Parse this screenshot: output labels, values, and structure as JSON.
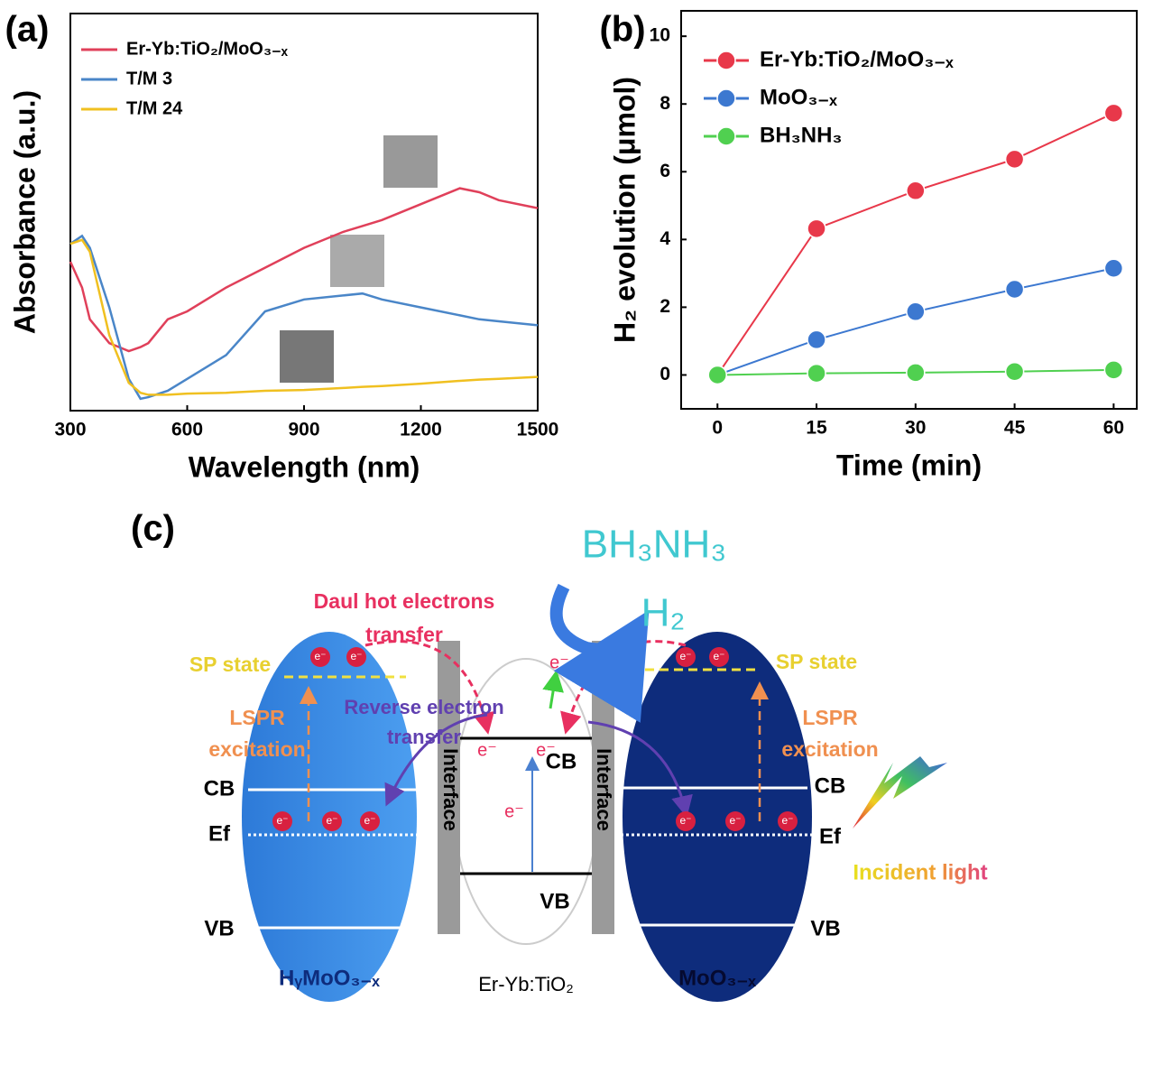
{
  "chart_data": [
    {
      "type": "line",
      "label": "(a)",
      "xlabel": "Wavelength (nm)",
      "ylabel": "Absorbance (a.u.)",
      "xlim": [
        300,
        1500
      ],
      "xticks": [
        300,
        600,
        900,
        1200,
        1500
      ],
      "ylim": [
        0,
        1
      ],
      "legend": "upper left",
      "x": [
        300,
        330,
        350,
        400,
        450,
        480,
        500,
        550,
        600,
        700,
        800,
        900,
        1000,
        1050,
        1100,
        1200,
        1300,
        1350,
        1400,
        1500
      ],
      "series": [
        {
          "name": "Er-Yb:TiO₂/MoO₃₋ₓ",
          "color": "#e0405a",
          "values": [
            0.375,
            0.31,
            0.23,
            0.17,
            0.15,
            0.16,
            0.17,
            0.23,
            0.25,
            0.31,
            0.36,
            0.41,
            0.45,
            0.465,
            0.48,
            0.52,
            0.56,
            0.55,
            0.53,
            0.51
          ]
        },
        {
          "name": "T/M 3",
          "color": "#4a86c8",
          "values": [
            0.42,
            0.44,
            0.41,
            0.26,
            0.08,
            0.03,
            0.034,
            0.05,
            0.08,
            0.14,
            0.25,
            0.28,
            0.29,
            0.295,
            0.28,
            0.26,
            0.24,
            0.23,
            0.225,
            0.215
          ]
        },
        {
          "name": "T/M 24",
          "color": "#f0c020",
          "values": [
            0.42,
            0.43,
            0.4,
            0.19,
            0.07,
            0.045,
            0.04,
            0.04,
            0.043,
            0.045,
            0.05,
            0.052,
            0.057,
            0.06,
            0.062,
            0.068,
            0.075,
            0.078,
            0.08,
            0.085
          ]
        }
      ]
    },
    {
      "type": "line",
      "label": "(b)",
      "xlabel": "Time (min)",
      "ylabel": "H₂ evolution (μmol)",
      "xlim": [
        -5.5,
        63.5
      ],
      "xticks": [
        0,
        15,
        30,
        45,
        60
      ],
      "ylim": [
        -1,
        10.75
      ],
      "yticks": [
        0,
        2,
        4,
        6,
        8,
        10
      ],
      "legend": "upper left",
      "markers": true,
      "x": [
        0,
        15,
        30,
        45,
        60
      ],
      "series": [
        {
          "name": "Er-Yb:TiO₂/MoO₃₋ₓ",
          "color": "#e8384a",
          "values": [
            0,
            4.32,
            5.44,
            6.37,
            7.73
          ]
        },
        {
          "name": "MoO₃₋ₓ",
          "color": "#3c78d0",
          "values": [
            0,
            1.04,
            1.87,
            2.53,
            3.15
          ]
        },
        {
          "name": "BH₃NH₃",
          "color": "#50d050",
          "values": [
            0,
            0.05,
            0.07,
            0.1,
            0.15
          ]
        }
      ]
    }
  ],
  "diagram": {
    "label": "(c)",
    "reactant": "BH₃NH₃",
    "product": "H₂",
    "hot_transfer": [
      "Daul hot electrons",
      "transfer"
    ],
    "reverse_transfer": [
      "Reverse electron",
      "transfer"
    ],
    "sp_state": "SP state",
    "lspr": [
      "LSPR",
      "excitation"
    ],
    "interface": "Interface",
    "cb": "CB",
    "vb": "VB",
    "ef": "Ef",
    "electron": "e⁻",
    "left_material": "HᵧMoO₃₋ₓ",
    "right_material": "MoO₃₋ₓ",
    "center_material": "Er-Yb:TiO₂",
    "incident_light": "Incident light"
  }
}
